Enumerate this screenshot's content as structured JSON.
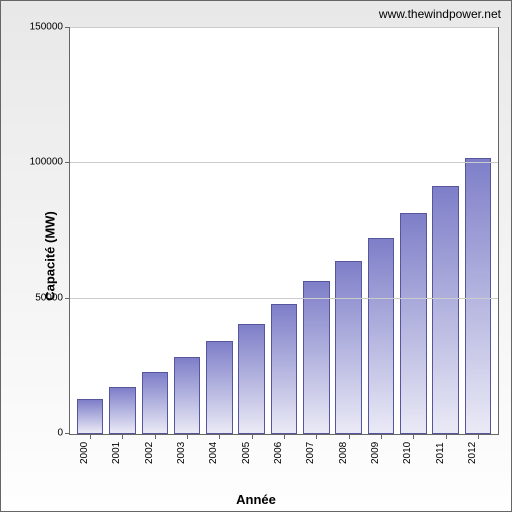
{
  "source_label": "www.thewindpower.net",
  "ylabel": "Capacité (MW)",
  "xlabel": "Année",
  "chart": {
    "type": "bar",
    "categories": [
      "2000",
      "2001",
      "2002",
      "2003",
      "2004",
      "2005",
      "2006",
      "2007",
      "2008",
      "2009",
      "2010",
      "2011",
      "2012"
    ],
    "values": [
      13000,
      17500,
      23000,
      28500,
      34500,
      40500,
      48000,
      56500,
      64000,
      72500,
      81500,
      91500,
      102000
    ],
    "bar_gradient_top": "#7e7ec9",
    "bar_gradient_bottom": "#eaeaf6",
    "bar_border": "#56569c",
    "ylim": [
      0,
      150000
    ],
    "ytick_step": 50000,
    "yticks": [
      "0",
      "50000",
      "100000",
      "150000"
    ],
    "outer_bg_top": "#e8e8e8",
    "outer_bg_bottom": "#fefefe",
    "grid_color": "#cccccc",
    "axis_color": "#666666",
    "tick_fontsize": 10,
    "label_fontsize": 13
  }
}
